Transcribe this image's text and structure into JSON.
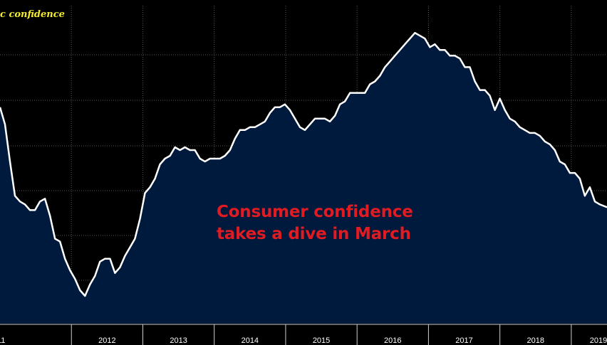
{
  "chart_data": {
    "type": "area",
    "legend_label": "c confidence",
    "annotation": [
      "Consumer confidence",
      "takes a dive in March"
    ],
    "x_tick_labels": [
      "11",
      "2012",
      "2013",
      "2014",
      "2015",
      "2016",
      "2017",
      "2018",
      "2019"
    ],
    "x_start": 2011.0,
    "x_end": 2019.5,
    "ylim": [
      0,
      100
    ],
    "grid": true,
    "colors": {
      "background": "#000000",
      "fill": "#001a3d",
      "line": "#ffffff",
      "grid": "#555555",
      "legend": "#f2ec2a",
      "annotation": "#e11b22"
    },
    "series": [
      {
        "values": [
          [
            2011.0,
            66
          ],
          [
            2011.07,
            60
          ],
          [
            2011.14,
            47
          ],
          [
            2011.21,
            35
          ],
          [
            2011.28,
            33
          ],
          [
            2011.35,
            32
          ],
          [
            2011.42,
            30
          ],
          [
            2011.49,
            30
          ],
          [
            2011.56,
            33
          ],
          [
            2011.63,
            34
          ],
          [
            2011.7,
            28
          ],
          [
            2011.77,
            20
          ],
          [
            2011.84,
            19
          ],
          [
            2011.91,
            13
          ],
          [
            2011.98,
            9
          ],
          [
            2012.05,
            6
          ],
          [
            2012.12,
            2
          ],
          [
            2012.19,
            0
          ],
          [
            2012.26,
            4
          ],
          [
            2012.33,
            7
          ],
          [
            2012.4,
            12
          ],
          [
            2012.47,
            13
          ],
          [
            2012.54,
            13
          ],
          [
            2012.61,
            8
          ],
          [
            2012.68,
            10
          ],
          [
            2012.75,
            14
          ],
          [
            2012.82,
            17
          ],
          [
            2012.89,
            20
          ],
          [
            2012.96,
            27
          ],
          [
            2013.03,
            36
          ],
          [
            2013.1,
            38
          ],
          [
            2013.17,
            41
          ],
          [
            2013.24,
            46
          ],
          [
            2013.31,
            48
          ],
          [
            2013.38,
            49
          ],
          [
            2013.45,
            52
          ],
          [
            2013.52,
            51
          ],
          [
            2013.59,
            52
          ],
          [
            2013.66,
            51
          ],
          [
            2013.73,
            51
          ],
          [
            2013.8,
            48
          ],
          [
            2013.87,
            47
          ],
          [
            2013.94,
            48
          ],
          [
            2014.01,
            48
          ],
          [
            2014.08,
            48
          ],
          [
            2014.15,
            49
          ],
          [
            2014.22,
            51
          ],
          [
            2014.29,
            55
          ],
          [
            2014.36,
            58
          ],
          [
            2014.43,
            58
          ],
          [
            2014.5,
            59
          ],
          [
            2014.57,
            59
          ],
          [
            2014.64,
            60
          ],
          [
            2014.71,
            61
          ],
          [
            2014.78,
            64
          ],
          [
            2014.85,
            66
          ],
          [
            2014.92,
            66
          ],
          [
            2014.99,
            67
          ],
          [
            2015.06,
            65
          ],
          [
            2015.13,
            62
          ],
          [
            2015.2,
            59
          ],
          [
            2015.27,
            58
          ],
          [
            2015.34,
            60
          ],
          [
            2015.41,
            62
          ],
          [
            2015.48,
            62
          ],
          [
            2015.55,
            62
          ],
          [
            2015.62,
            61
          ],
          [
            2015.69,
            63
          ],
          [
            2015.76,
            67
          ],
          [
            2015.83,
            68
          ],
          [
            2015.9,
            71
          ],
          [
            2015.97,
            71
          ],
          [
            2016.04,
            71
          ],
          [
            2016.11,
            71
          ],
          [
            2016.18,
            74
          ],
          [
            2016.25,
            75
          ],
          [
            2016.32,
            77
          ],
          [
            2016.39,
            80
          ],
          [
            2016.46,
            82
          ],
          [
            2016.53,
            84
          ],
          [
            2016.6,
            86
          ],
          [
            2016.67,
            88
          ],
          [
            2016.74,
            90
          ],
          [
            2016.81,
            92
          ],
          [
            2016.88,
            91
          ],
          [
            2016.95,
            90
          ],
          [
            2017.02,
            87
          ],
          [
            2017.09,
            88
          ],
          [
            2017.16,
            86
          ],
          [
            2017.23,
            86
          ],
          [
            2017.3,
            84
          ],
          [
            2017.37,
            84
          ],
          [
            2017.44,
            83
          ],
          [
            2017.51,
            80
          ],
          [
            2017.58,
            80
          ],
          [
            2017.65,
            75
          ],
          [
            2017.72,
            72
          ],
          [
            2017.79,
            72
          ],
          [
            2017.86,
            70
          ],
          [
            2017.93,
            65
          ],
          [
            2018.0,
            69
          ],
          [
            2018.07,
            65
          ],
          [
            2018.14,
            62
          ],
          [
            2018.21,
            61
          ],
          [
            2018.28,
            59
          ],
          [
            2018.35,
            58
          ],
          [
            2018.42,
            57
          ],
          [
            2018.49,
            57
          ],
          [
            2018.56,
            56
          ],
          [
            2018.63,
            54
          ],
          [
            2018.7,
            53
          ],
          [
            2018.77,
            51
          ],
          [
            2018.84,
            47
          ],
          [
            2018.91,
            46
          ],
          [
            2018.98,
            43
          ],
          [
            2019.05,
            43
          ],
          [
            2019.12,
            41
          ],
          [
            2019.19,
            35
          ],
          [
            2019.26,
            38
          ],
          [
            2019.33,
            33
          ],
          [
            2019.4,
            32
          ],
          [
            2019.5,
            31
          ]
        ]
      }
    ]
  }
}
